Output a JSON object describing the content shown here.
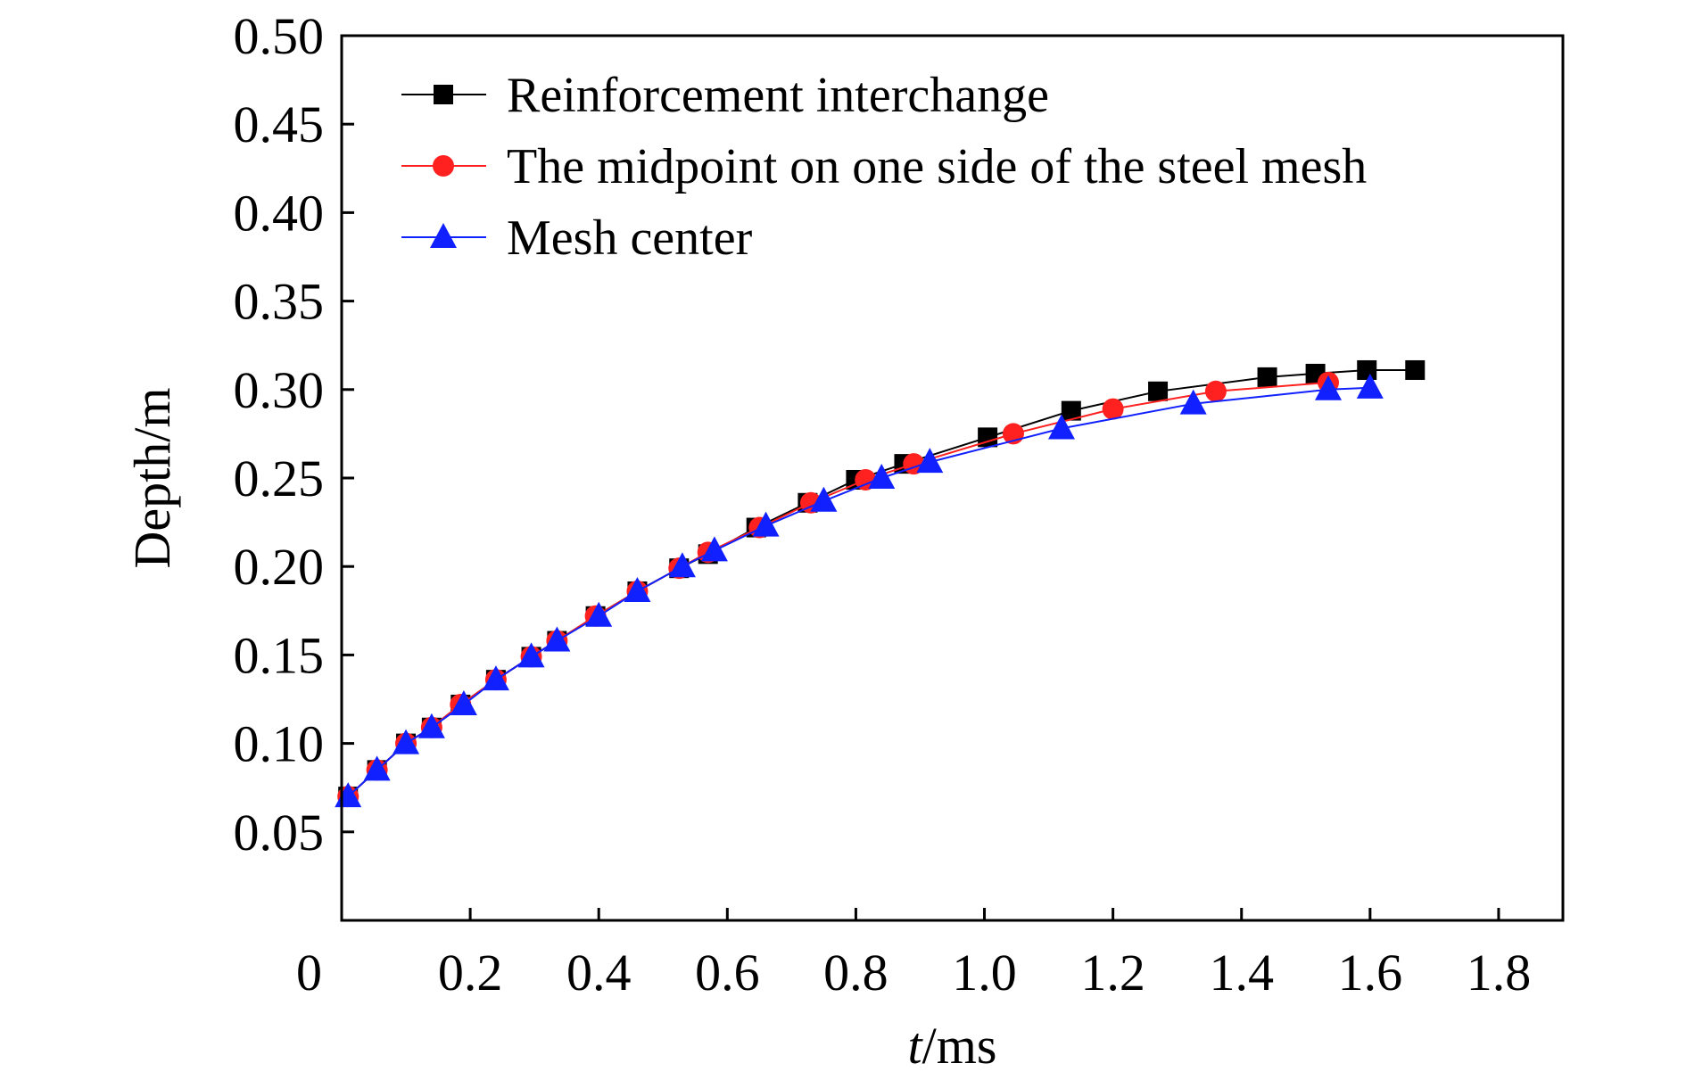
{
  "chart_data": {
    "type": "line",
    "title": "",
    "xlabel_italic": "t",
    "xlabel_rest": "/ms",
    "ylabel": "Depth/m",
    "xlim": [
      0,
      1.9
    ],
    "ylim": [
      0,
      0.5
    ],
    "xticks": [
      0,
      0.2,
      0.4,
      0.6,
      0.8,
      1.0,
      1.2,
      1.4,
      1.6,
      1.8
    ],
    "xtick_labels": [
      "0",
      "0.2",
      "0.4",
      "0.6",
      "0.8",
      "1.0",
      "1.2",
      "1.4",
      "1.6",
      "1.8"
    ],
    "yticks": [
      0.05,
      0.1,
      0.15,
      0.2,
      0.25,
      0.3,
      0.35,
      0.4,
      0.45,
      0.5
    ],
    "ytick_labels": [
      "0.05",
      "0.10",
      "0.15",
      "0.20",
      "0.25",
      "0.30",
      "0.35",
      "0.40",
      "0.45",
      "0.50"
    ],
    "grid": false,
    "legend_position": "top-left",
    "series": [
      {
        "name": "Reinforcement interchange",
        "color": "#000000",
        "marker": "square",
        "x": [
          0.01,
          0.055,
          0.1,
          0.14,
          0.185,
          0.24,
          0.295,
          0.335,
          0.395,
          0.46,
          0.525,
          0.57,
          0.645,
          0.725,
          0.8,
          0.875,
          1.005,
          1.135,
          1.27,
          1.44,
          1.515,
          1.595,
          1.67
        ],
        "y": [
          0.07,
          0.085,
          0.1,
          0.109,
          0.122,
          0.136,
          0.149,
          0.158,
          0.172,
          0.186,
          0.199,
          0.207,
          0.222,
          0.236,
          0.249,
          0.258,
          0.273,
          0.288,
          0.299,
          0.307,
          0.309,
          0.311,
          0.311
        ]
      },
      {
        "name": "The midpoint on one side of the steel mesh",
        "color": "#ff2020",
        "marker": "circle",
        "x": [
          0.01,
          0.055,
          0.1,
          0.14,
          0.185,
          0.24,
          0.295,
          0.335,
          0.395,
          0.46,
          0.525,
          0.57,
          0.65,
          0.73,
          0.815,
          0.89,
          1.045,
          1.2,
          1.36,
          1.535
        ],
        "y": [
          0.07,
          0.085,
          0.1,
          0.109,
          0.122,
          0.136,
          0.149,
          0.158,
          0.172,
          0.186,
          0.199,
          0.208,
          0.222,
          0.236,
          0.249,
          0.258,
          0.275,
          0.289,
          0.299,
          0.304
        ]
      },
      {
        "name": "Mesh center",
        "color": "#1020ff",
        "marker": "triangle",
        "x": [
          0.01,
          0.055,
          0.1,
          0.14,
          0.19,
          0.24,
          0.295,
          0.335,
          0.4,
          0.46,
          0.53,
          0.58,
          0.66,
          0.75,
          0.84,
          0.915,
          1.12,
          1.325,
          1.535,
          1.6
        ],
        "y": [
          0.07,
          0.085,
          0.1,
          0.109,
          0.122,
          0.136,
          0.149,
          0.158,
          0.172,
          0.186,
          0.2,
          0.209,
          0.223,
          0.237,
          0.25,
          0.259,
          0.278,
          0.292,
          0.3,
          0.301
        ]
      }
    ]
  }
}
